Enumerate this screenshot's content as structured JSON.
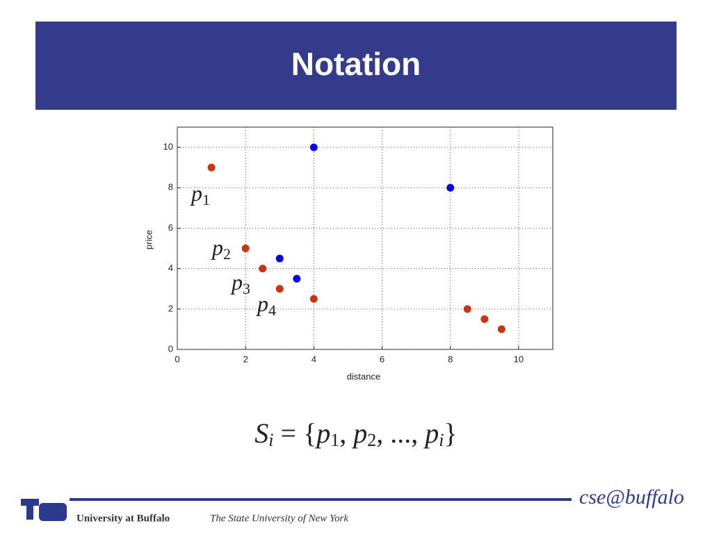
{
  "slide_title": "Notation",
  "chart_data": {
    "type": "scatter",
    "xlabel": "distance",
    "ylabel": "price",
    "xlim": [
      0,
      11
    ],
    "ylim": [
      0,
      11
    ],
    "xticks": [
      0,
      2,
      4,
      6,
      8,
      10
    ],
    "yticks": [
      0,
      2,
      4,
      6,
      8,
      10
    ],
    "grid": true,
    "series": [
      {
        "color": "#cc3311",
        "x": [
          1,
          2,
          2.5,
          3,
          4,
          8.5,
          9,
          9.5
        ],
        "values": [
          9,
          5,
          4,
          3,
          2.5,
          2,
          1.5,
          1
        ]
      },
      {
        "color": "#0000ee",
        "x": [
          3,
          3.5,
          4,
          8
        ],
        "values": [
          4.5,
          3.5,
          10,
          8
        ]
      }
    ],
    "annotations": [
      {
        "text": "p",
        "sub": "1"
      },
      {
        "text": "p",
        "sub": "2"
      },
      {
        "text": "p",
        "sub": "3"
      },
      {
        "text": "p",
        "sub": "4"
      }
    ]
  },
  "formula": [
    "S",
    "i",
    " = {",
    "p",
    "1",
    ", ",
    "p",
    "2",
    ", ..., ",
    "p",
    "i",
    "}"
  ],
  "footer": {
    "university": "University at Buffalo",
    "subtitle": "The State University of New York",
    "brand": "cse@buffalo"
  }
}
